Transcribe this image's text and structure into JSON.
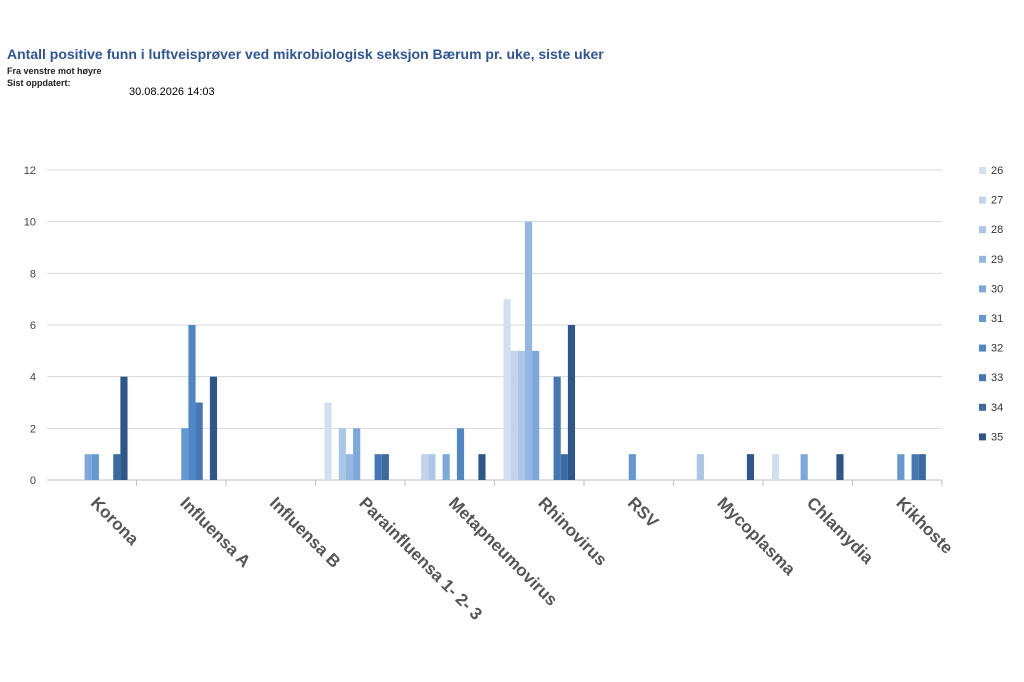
{
  "header": {
    "title": "Antall positive funn i luftveisprøver ved mikrobiologisk seksjon Bærum pr. uke, siste uker",
    "subtitle": "Fra venstre mot høyre",
    "updated_label": "Sist oppdatert:",
    "updated_value": "30.08.2026 14:03"
  },
  "chart_data": {
    "type": "bar",
    "categories": [
      "Korona",
      "Influensa A",
      "Influensa B",
      "Parainfluensa 1- 2- 3",
      "Metapneumovirus",
      "Rhinovirus",
      "RSV",
      "Mycoplasma",
      "Chlamydia",
      "Kikhoste"
    ],
    "ylim": [
      0,
      12
    ],
    "yticks": [
      0,
      2,
      4,
      6,
      8,
      10,
      12
    ],
    "grid": true,
    "legend": "right",
    "series": [
      {
        "name": "26",
        "color": "#d3dff0",
        "values": [
          0,
          0,
          0,
          3,
          0,
          7,
          0,
          0,
          1,
          0
        ]
      },
      {
        "name": "27",
        "color": "#c2d4ec",
        "values": [
          0,
          0,
          0,
          0,
          1,
          5,
          0,
          0,
          0,
          0
        ]
      },
      {
        "name": "28",
        "color": "#abc6e7",
        "values": [
          0,
          0,
          0,
          2,
          1,
          5,
          0,
          1,
          0,
          0
        ]
      },
      {
        "name": "29",
        "color": "#94b7e2",
        "values": [
          0,
          0,
          0,
          1,
          0,
          10,
          0,
          0,
          0,
          0
        ]
      },
      {
        "name": "30",
        "color": "#7da8dc",
        "values": [
          1,
          0,
          0,
          2,
          1,
          5,
          0,
          0,
          1,
          0
        ]
      },
      {
        "name": "31",
        "color": "#6597d3",
        "values": [
          1,
          2,
          0,
          0,
          0,
          0,
          1,
          0,
          0,
          1
        ]
      },
      {
        "name": "32",
        "color": "#4f86c6",
        "values": [
          0,
          6,
          0,
          0,
          2,
          0,
          0,
          0,
          0,
          0
        ]
      },
      {
        "name": "33",
        "color": "#4577b3",
        "values": [
          0,
          3,
          0,
          1,
          0,
          4,
          0,
          0,
          0,
          1
        ]
      },
      {
        "name": "34",
        "color": "#3c6aa0",
        "values": [
          1,
          0,
          0,
          1,
          0,
          1,
          0,
          0,
          0,
          1
        ]
      },
      {
        "name": "35",
        "color": "#2f5689",
        "values": [
          4,
          4,
          0,
          0,
          1,
          6,
          0,
          1,
          1,
          0
        ]
      }
    ]
  }
}
